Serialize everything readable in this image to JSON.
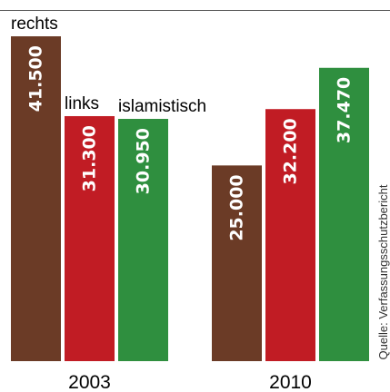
{
  "chart_data": {
    "type": "bar",
    "categories": [
      "2003",
      "2010"
    ],
    "series": [
      {
        "name": "rechts",
        "values": [
          41500,
          25000
        ],
        "color": "#6b3b26"
      },
      {
        "name": "links",
        "values": [
          31300,
          32200
        ],
        "color": "#c11c24"
      },
      {
        "name": "islamistisch",
        "values": [
          30950,
          37470
        ],
        "color": "#2f8f3f"
      }
    ],
    "value_labels": {
      "2003": [
        "41.500",
        "31.300",
        "30.950"
      ],
      "2010": [
        "25.000",
        "32.200",
        "37.470"
      ]
    },
    "source": "Quelle: Verfassungsschutzbericht",
    "ylim": [
      0,
      41500
    ]
  }
}
